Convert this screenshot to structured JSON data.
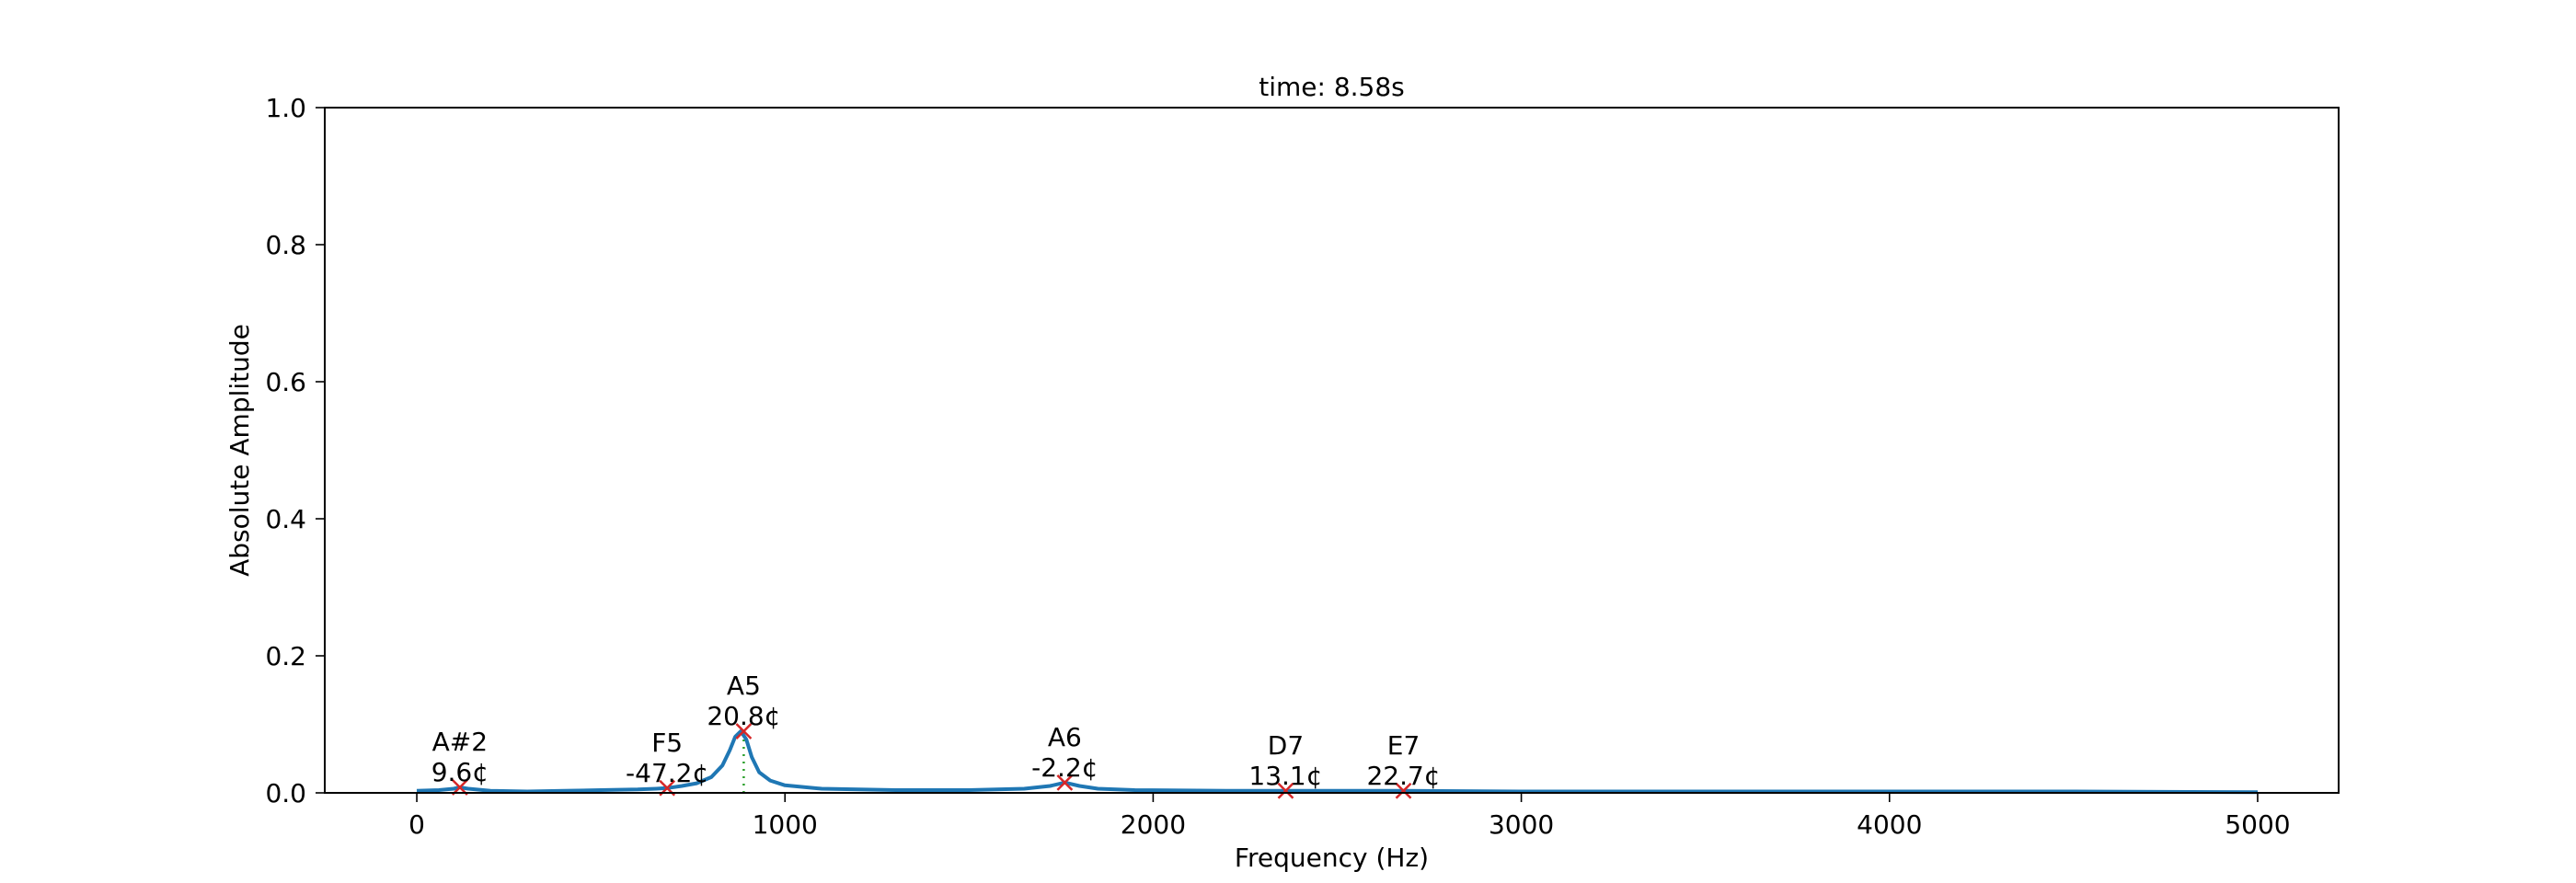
{
  "chart_data": {
    "type": "line",
    "title": "time: 8.58s",
    "xlabel": "Frequency (Hz)",
    "ylabel": "Absolute Amplitude",
    "xlim": [
      -250,
      5220
    ],
    "ylim": [
      0,
      1.0
    ],
    "x_ticks": [
      0,
      1000,
      2000,
      3000,
      4000,
      5000
    ],
    "x_tick_labels": [
      "0",
      "1000",
      "2000",
      "3000",
      "4000",
      "5000"
    ],
    "y_ticks": [
      0,
      0.2,
      0.4,
      0.6,
      0.8,
      1.0
    ],
    "y_tick_labels": [
      "0.0",
      "0.2",
      "0.4",
      "0.6",
      "0.8",
      "1.0"
    ],
    "grid": false,
    "series": [
      {
        "color": "#1f77b4",
        "x": [
          0,
          60,
          100,
          117,
          140,
          200,
          300,
          400,
          500,
          600,
          650,
          680,
          720,
          760,
          800,
          830,
          850,
          865,
          880,
          895,
          910,
          930,
          960,
          1000,
          1100,
          1300,
          1500,
          1650,
          1720,
          1760,
          1800,
          1850,
          1950,
          2200,
          2360,
          2500,
          2680,
          3000,
          3500,
          4000,
          4500,
          5000
        ],
        "y": [
          0.003,
          0.004,
          0.006,
          0.008,
          0.006,
          0.003,
          0.002,
          0.003,
          0.004,
          0.005,
          0.006,
          0.007,
          0.01,
          0.014,
          0.023,
          0.04,
          0.062,
          0.082,
          0.09,
          0.078,
          0.052,
          0.03,
          0.018,
          0.011,
          0.006,
          0.004,
          0.004,
          0.006,
          0.01,
          0.015,
          0.01,
          0.006,
          0.004,
          0.003,
          0.003,
          0.003,
          0.003,
          0.002,
          0.002,
          0.002,
          0.002,
          0.001
        ]
      }
    ],
    "peaks": [
      {
        "x": 117,
        "y": 0.008,
        "note": "A#2",
        "cents": "9.6¢"
      },
      {
        "x": 680,
        "y": 0.007,
        "note": "F5",
        "cents": "-47.2¢"
      },
      {
        "x": 888,
        "y": 0.09,
        "note": "A5",
        "cents": "20.8¢"
      },
      {
        "x": 1760,
        "y": 0.015,
        "note": "A6",
        "cents": "-2.2¢"
      },
      {
        "x": 2360,
        "y": 0.003,
        "note": "D7",
        "cents": "13.1¢"
      },
      {
        "x": 2680,
        "y": 0.003,
        "note": "E7",
        "cents": "22.7¢"
      }
    ],
    "peak_marker_color": "#d62728",
    "reference_line": {
      "x": 888,
      "color": "#2ca02c",
      "style": "dotted"
    }
  }
}
